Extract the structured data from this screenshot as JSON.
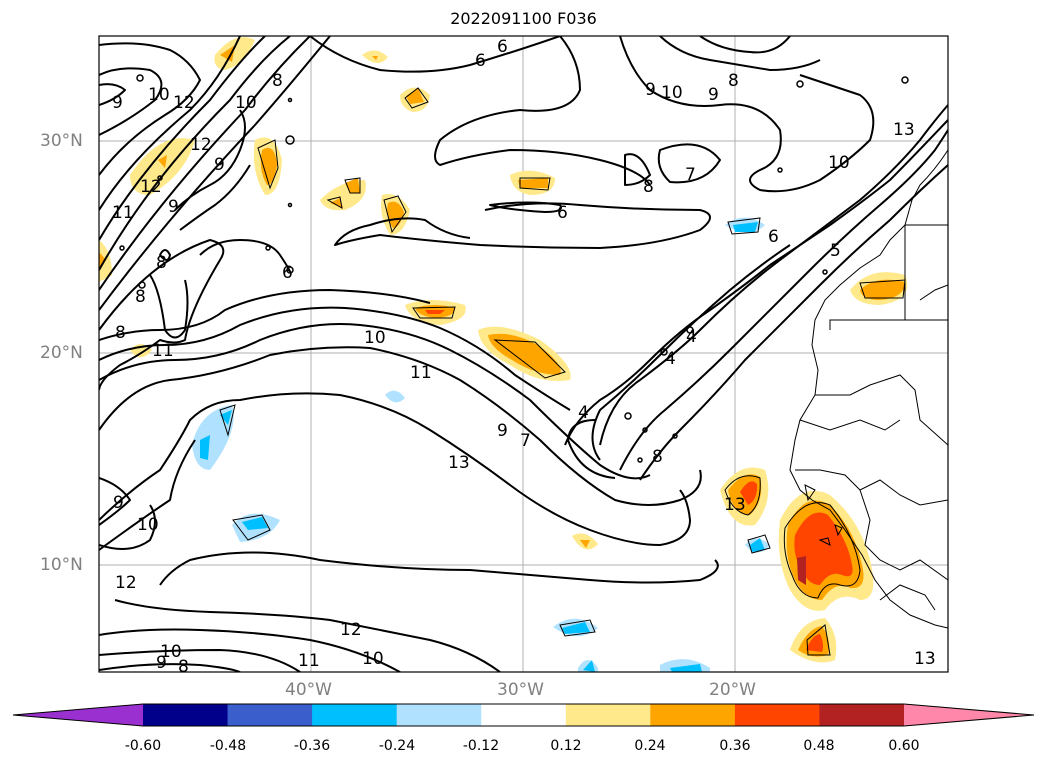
{
  "title": "2022091100 F036",
  "lat_labels": [
    "30°N",
    "20°N",
    "10°N"
  ],
  "lon_labels": [
    "40°W",
    "30°W",
    "20°W"
  ],
  "contour_labels": [
    "6",
    "6",
    "9",
    "10",
    "12",
    "10",
    "8",
    "12",
    "9",
    "9",
    "10",
    "9",
    "8",
    "8",
    "7",
    "6",
    "11",
    "9",
    "8",
    "8",
    "6",
    "6",
    "5",
    "8",
    "11",
    "10",
    "4",
    "4",
    "11",
    "4",
    "9",
    "7",
    "13",
    "8",
    "9",
    "13",
    "10",
    "12",
    "12",
    "11",
    "10",
    "13",
    "9",
    "8",
    "10",
    "12",
    "13",
    "10"
  ],
  "colorbar": {
    "ticks": [
      "-0.60",
      "-0.48",
      "-0.36",
      "-0.24",
      "-0.12",
      "0.12",
      "0.24",
      "0.36",
      "0.48",
      "0.60"
    ],
    "colors": [
      "#9b30d0",
      "#00008b",
      "#3a5fcd",
      "#00bfff",
      "#b0e2ff",
      "#ffffff",
      "#ffe98a",
      "#ffa500",
      "#ff4500",
      "#b22222",
      "#ff88aa"
    ]
  }
}
